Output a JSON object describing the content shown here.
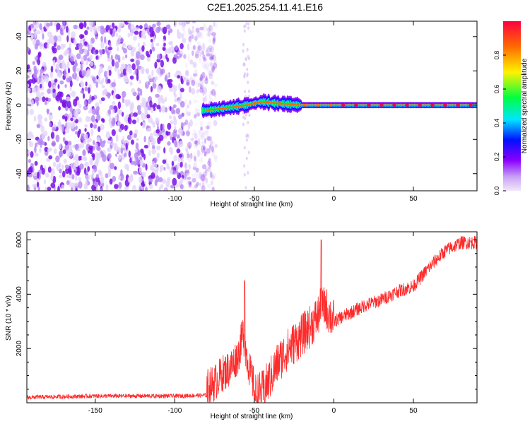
{
  "title": "C2E1.2025.254.11.41.E16",
  "chart_data": [
    {
      "type": "heatmap",
      "xlabel": "Height of straight line (km)",
      "ylabel": "Frequency (Hz)",
      "xlim": [
        -193,
        90
      ],
      "ylim": [
        -50,
        49
      ],
      "x_ticks": [
        -150,
        -100,
        -50,
        0,
        50
      ],
      "y_ticks": [
        -40,
        -20,
        0,
        20,
        40
      ],
      "colorbar": {
        "label": "Normalized spectral amplitude",
        "range": [
          0,
          1
        ],
        "ticks": [
          0.0,
          0.2,
          0.4,
          0.6,
          0.8
        ],
        "colors": [
          "#f2e8fb",
          "#8a00ff",
          "#0010ff",
          "#00e5ff",
          "#00ff40",
          "#fff200",
          "#ff6a00",
          "#ff0040"
        ]
      },
      "noise_region": {
        "x_range": [
          -193,
          -80
        ],
        "level": 0.2
      },
      "ridge": [
        {
          "x": -80,
          "y": -3,
          "amp": 0.35
        },
        {
          "x": -70,
          "y": -2,
          "amp": 0.4
        },
        {
          "x": -55,
          "y": 0,
          "amp": 0.45
        },
        {
          "x": -45,
          "y": 2,
          "amp": 0.55
        },
        {
          "x": -35,
          "y": 1,
          "amp": 0.6
        },
        {
          "x": -20,
          "y": 0,
          "amp": 0.7
        },
        {
          "x": 0,
          "y": 0,
          "amp": 0.85
        },
        {
          "x": 90,
          "y": 0,
          "amp": 0.9
        }
      ]
    },
    {
      "type": "line",
      "xlabel": "Height of straight line (km)",
      "ylabel": "SNR (10 * v/v)",
      "xlim": [
        -193,
        90
      ],
      "ylim": [
        0,
        6300
      ],
      "x_ticks": [
        -150,
        -100,
        -50,
        0,
        50
      ],
      "y_ticks": [
        2000,
        4000,
        6000
      ],
      "color": "#ff2a2a",
      "series": [
        {
          "x": [
            -193,
            -150,
            -100,
            -80,
            -75,
            -70,
            -65,
            -60,
            -57,
            -55,
            -52,
            -50,
            -45,
            -40,
            -35,
            -30,
            -25,
            -20,
            -15,
            -10,
            -8,
            -5,
            0,
            10,
            20,
            30,
            40,
            45,
            50,
            60,
            70,
            80,
            90
          ],
          "values": [
            200,
            250,
            250,
            280,
            450,
            800,
            1000,
            1500,
            2300,
            1500,
            700,
            300,
            400,
            900,
            1500,
            1900,
            2200,
            2500,
            2800,
            3200,
            3500,
            3500,
            3000,
            3300,
            3600,
            3800,
            4100,
            4200,
            4300,
            5000,
            5600,
            5900,
            5900
          ]
        }
      ],
      "spikes": [
        {
          "x": -56,
          "y": 4500
        },
        {
          "x": -8,
          "y": 6000
        }
      ]
    }
  ]
}
